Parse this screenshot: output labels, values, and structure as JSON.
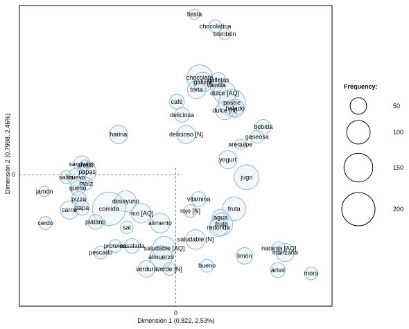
{
  "chart_data": {
    "type": "scatter",
    "xlabel": "Dimensión 1  (0.822,  2.53%)",
    "ylabel": "Dimensión 2  (0.7998,  2.46%)",
    "x_ticks": [
      "0"
    ],
    "y_ticks": [
      "0"
    ],
    "xlim": [
      -1.5,
      1.5
    ],
    "ylim": [
      -1.2,
      1.55
    ],
    "legend": {
      "title": "Frequency:",
      "placement": "right",
      "entries": [
        {
          "label": "50",
          "value": 50
        },
        {
          "label": "100",
          "value": 100
        },
        {
          "label": "150",
          "value": 150
        },
        {
          "label": "200",
          "value": 200
        }
      ]
    },
    "colors": {
      "bubble_fill": "#d6e8f4",
      "bubble_stroke": "#8db8d6"
    },
    "points": [
      {
        "label": "fiesta",
        "x": 0.18,
        "y": 1.47,
        "size": 20
      },
      {
        "label": "chocolatina",
        "x": 0.38,
        "y": 1.36,
        "size": 30
      },
      {
        "label": "bombón",
        "x": 0.47,
        "y": 1.29,
        "size": 25
      },
      {
        "label": "chocolate",
        "x": 0.23,
        "y": 0.89,
        "size": 120
      },
      {
        "label": "galletas",
        "x": 0.41,
        "y": 0.87,
        "size": 40
      },
      {
        "label": "galleta",
        "x": 0.26,
        "y": 0.85,
        "size": 70
      },
      {
        "label": "vainilla",
        "x": 0.39,
        "y": 0.82,
        "size": 30
      },
      {
        "label": "torta",
        "x": 0.2,
        "y": 0.78,
        "size": 60
      },
      {
        "label": "dulce [AQ]",
        "x": 0.47,
        "y": 0.75,
        "size": 90
      },
      {
        "label": "café",
        "x": 0.01,
        "y": 0.67,
        "size": 40
      },
      {
        "label": "postre",
        "x": 0.54,
        "y": 0.66,
        "size": 130
      },
      {
        "label": "helado",
        "x": 0.57,
        "y": 0.61,
        "size": 60
      },
      {
        "label": "deliciosa",
        "x": 0.06,
        "y": 0.55,
        "size": 40
      },
      {
        "label": "dulce [N]",
        "x": 0.47,
        "y": 0.59,
        "size": 60
      },
      {
        "label": "bebida",
        "x": 0.84,
        "y": 0.44,
        "size": 40
      },
      {
        "label": "harina",
        "x": -0.55,
        "y": 0.37,
        "size": 60
      },
      {
        "label": "delicioso [N]",
        "x": 0.1,
        "y": 0.37,
        "size": 60
      },
      {
        "label": "gaseosa",
        "x": 0.78,
        "y": 0.35,
        "size": 30
      },
      {
        "label": "arequipe",
        "x": 0.62,
        "y": 0.28,
        "size": 20
      },
      {
        "label": "yogurt",
        "x": 0.5,
        "y": 0.14,
        "size": 60
      },
      {
        "label": "sandwich",
        "x": -0.9,
        "y": 0.1,
        "size": 50
      },
      {
        "label": "arepa",
        "x": -0.87,
        "y": 0.09,
        "size": 20
      },
      {
        "label": "papas",
        "x": -0.85,
        "y": 0.03,
        "size": 60
      },
      {
        "label": "salsa",
        "x": -1.05,
        "y": -0.02,
        "size": 30
      },
      {
        "label": "huevo",
        "x": -0.95,
        "y": -0.02,
        "size": 60
      },
      {
        "label": "maíz",
        "x": -0.86,
        "y": -0.08,
        "size": 30
      },
      {
        "label": "queso",
        "x": -0.94,
        "y": -0.12,
        "size": 40
      },
      {
        "label": "jugo",
        "x": 0.68,
        "y": -0.02,
        "size": 110
      },
      {
        "label": "jamón",
        "x": -1.26,
        "y": -0.15,
        "size": 20
      },
      {
        "label": "pizza",
        "x": -0.93,
        "y": -0.22,
        "size": 40
      },
      {
        "label": "vitamina",
        "x": 0.22,
        "y": -0.22,
        "size": 40
      },
      {
        "label": "desayuno",
        "x": -0.48,
        "y": -0.24,
        "size": 80
      },
      {
        "label": "carne",
        "x": -1.02,
        "y": -0.32,
        "size": 60
      },
      {
        "label": "papa",
        "x": -0.9,
        "y": -0.3,
        "size": 40
      },
      {
        "label": "comida",
        "x": -0.64,
        "y": -0.31,
        "size": 200
      },
      {
        "label": "rico [AQ]",
        "x": -0.33,
        "y": -0.35,
        "size": 70
      },
      {
        "label": "rojo [N]",
        "x": 0.14,
        "y": -0.33,
        "size": 30
      },
      {
        "label": "fruta",
        "x": 0.56,
        "y": -0.31,
        "size": 100
      },
      {
        "label": "agua",
        "x": 0.43,
        "y": -0.39,
        "size": 50
      },
      {
        "label": "fruto",
        "x": 0.44,
        "y": -0.45,
        "size": 90
      },
      {
        "label": "cerdo",
        "x": -1.25,
        "y": -0.44,
        "size": 30
      },
      {
        "label": "plátano",
        "x": -0.77,
        "y": -0.43,
        "size": 40
      },
      {
        "label": "redonda",
        "x": 0.41,
        "y": -0.48,
        "size": 60
      },
      {
        "label": "sal",
        "x": -0.47,
        "y": -0.48,
        "size": 30
      },
      {
        "label": "alimento",
        "x": -0.15,
        "y": -0.44,
        "size": 70
      },
      {
        "label": "saludable [N]",
        "x": 0.19,
        "y": -0.59,
        "size": 70
      },
      {
        "label": "proteína",
        "x": -0.58,
        "y": -0.65,
        "size": 30
      },
      {
        "label": "ensalada",
        "x": -0.42,
        "y": -0.65,
        "size": 40
      },
      {
        "label": "saludable [AQ]",
        "x": -0.11,
        "y": -0.67,
        "size": 100
      },
      {
        "label": "pescado",
        "x": -0.72,
        "y": -0.71,
        "size": 30
      },
      {
        "label": "limón",
        "x": 0.66,
        "y": -0.74,
        "size": 50
      },
      {
        "label": "manzana",
        "x": 1.05,
        "y": -0.71,
        "size": 60
      },
      {
        "label": "almuerzo",
        "x": -0.14,
        "y": -0.75,
        "size": 90
      },
      {
        "label": "naranja [AQ]",
        "x": 0.99,
        "y": -0.67,
        "size": 30
      },
      {
        "label": "bueno",
        "x": 0.3,
        "y": -0.83,
        "size": 30
      },
      {
        "label": "verdura",
        "x": -0.28,
        "y": -0.86,
        "size": 50
      },
      {
        "label": "verde [N]",
        "x": -0.06,
        "y": -0.86,
        "size": 30
      },
      {
        "label": "mora",
        "x": 1.3,
        "y": -0.9,
        "size": 30
      },
      {
        "label": "árbol",
        "x": 0.98,
        "y": -0.87,
        "size": 40
      }
    ]
  }
}
